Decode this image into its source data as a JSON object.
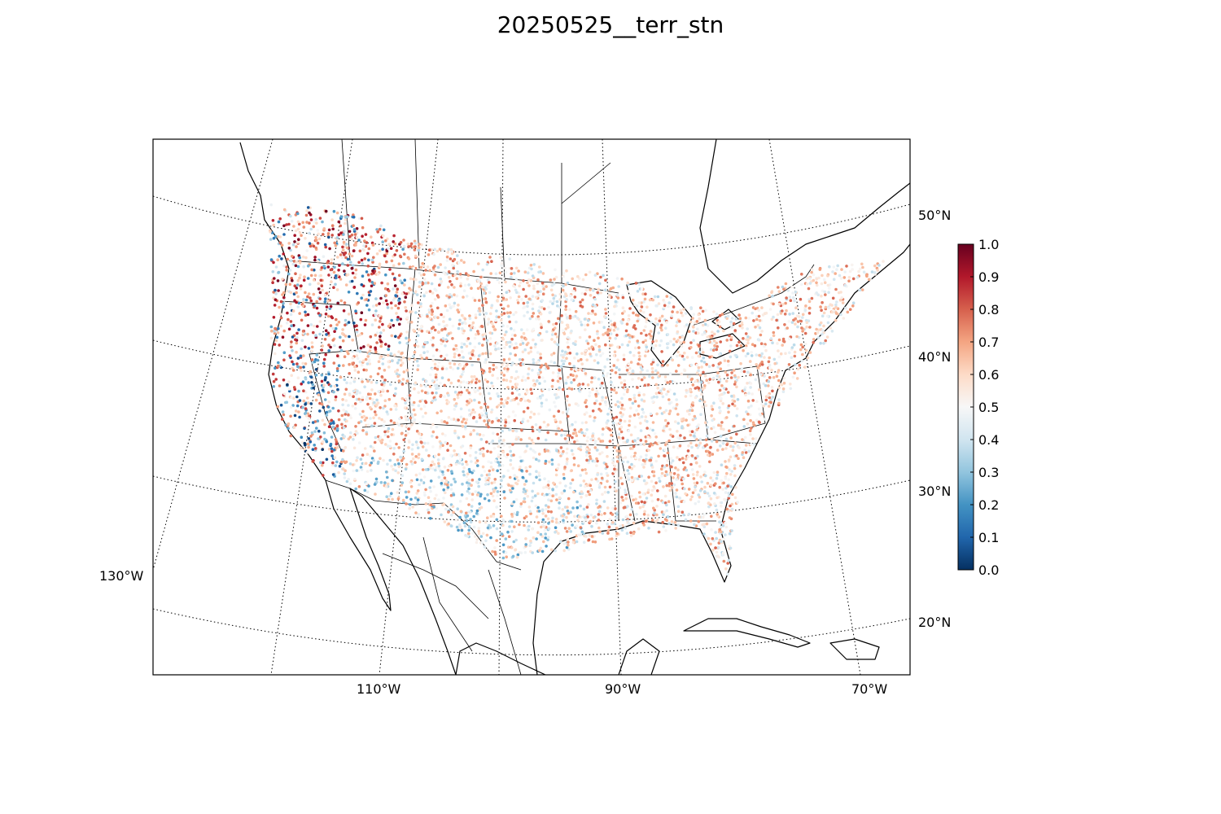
{
  "title": "20250525__terr_stn",
  "map": {
    "projection": "lambert-conformal",
    "lat_labels": [
      "50°N",
      "40°N",
      "30°N",
      "20°N"
    ],
    "lon_labels": [
      "130°W",
      "110°W",
      "90°W",
      "70°W"
    ],
    "gridlines": "dotted",
    "coastlines": true,
    "state_borders": true
  },
  "colorbar": {
    "colormap": "RdBu_r",
    "range": [
      0.0,
      1.0
    ],
    "ticks": [
      "0.0",
      "0.1",
      "0.2",
      "0.3",
      "0.4",
      "0.5",
      "0.6",
      "0.7",
      "0.8",
      "0.9",
      "1.0"
    ],
    "colors": [
      "#053061",
      "#2166ac",
      "#4393c3",
      "#92c5de",
      "#d1e5f0",
      "#f7f7f7",
      "#fddbc7",
      "#f4a582",
      "#d6604d",
      "#b2182b",
      "#67001f"
    ]
  }
}
